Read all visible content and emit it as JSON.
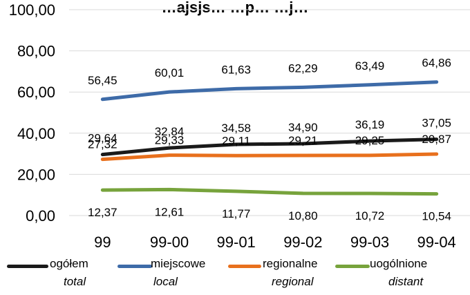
{
  "chart_data": {
    "type": "line",
    "title": "…ajsjs…            …p…           …j…",
    "categories": [
      "99",
      "99-00",
      "99-01",
      "99-02",
      "99-03",
      "99-04"
    ],
    "y_ticks": [
      "0,00",
      "20,00",
      "40,00",
      "60,00",
      "80,00",
      "100,00"
    ],
    "ylim": [
      0,
      100
    ],
    "grid": true,
    "legend_position": "bottom",
    "series": [
      {
        "name": "miejscowe",
        "name_en": "local",
        "color": "#3e6ba8",
        "values": [
          56.45,
          60.01,
          61.63,
          62.29,
          63.49,
          64.86
        ],
        "labels": [
          "56,45",
          "60,01",
          "61,63",
          "62,29",
          "63,49",
          "64,86"
        ]
      },
      {
        "name": "ogółem",
        "name_en": "total",
        "color": "#1a1a1a",
        "values": [
          29.64,
          32.84,
          34.58,
          34.9,
          36.19,
          37.05
        ],
        "labels": [
          "29,64",
          "32,84",
          "34,58",
          "34,90",
          "36,19",
          "37,05"
        ]
      },
      {
        "name": "regionalne",
        "name_en": "regional",
        "color": "#e8701d",
        "values": [
          27.32,
          29.33,
          29.11,
          29.21,
          29.25,
          29.87
        ],
        "labels": [
          "27,32",
          "29,33",
          "29,11",
          "29,21",
          "29,25",
          "29,87"
        ]
      },
      {
        "name": "uogólnione",
        "name_en": "distant",
        "color": "#77a33c",
        "values": [
          12.37,
          12.61,
          11.77,
          10.8,
          10.72,
          10.54
        ],
        "labels": [
          "12,37",
          "12,61",
          "11,77",
          "10,80",
          "10,72",
          "10,54"
        ]
      }
    ]
  },
  "legend": [
    {
      "label": "ogółem",
      "sub": "total",
      "color": "#1a1a1a"
    },
    {
      "label": "miejscowe",
      "sub": "local",
      "color": "#3e6ba8"
    },
    {
      "label": "regionalne",
      "sub": "regional",
      "color": "#e8701d"
    },
    {
      "label": "uogólnione",
      "sub": "distant",
      "color": "#77a33c"
    }
  ]
}
